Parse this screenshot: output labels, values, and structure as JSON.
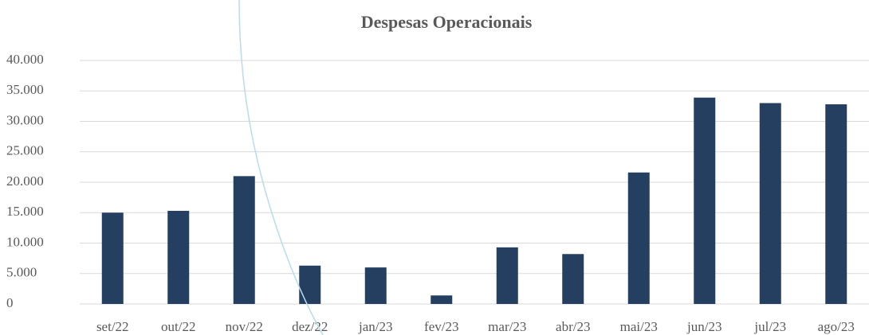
{
  "chart_data": {
    "type": "bar",
    "title": "Despesas Operacionais",
    "categories": [
      "set/22",
      "out/22",
      "nov/22",
      "dez/22",
      "jan/23",
      "fev/23",
      "mar/23",
      "abr/23",
      "mai/23",
      "jun/23",
      "jul/23",
      "ago/23"
    ],
    "values": [
      15000,
      15300,
      21000,
      6300,
      6000,
      1400,
      9300,
      8200,
      21600,
      33900,
      33000,
      32800
    ],
    "color": "#243f60",
    "ylim": [
      0,
      40000
    ],
    "yticks": [
      0,
      {
        "value": 5000,
        "label": "5.000"
      },
      {
        "value": 10000,
        "label": "10.000"
      },
      {
        "value": 15000,
        "label": "15.000"
      },
      {
        "value": 20000,
        "label": "20.000"
      },
      {
        "value": 25000,
        "label": "25.000"
      },
      {
        "value": 30000,
        "label": "30.000"
      },
      {
        "value": 35000,
        "label": "35.000"
      },
      {
        "value": 40000,
        "label": "40.000"
      }
    ],
    "grid": true
  }
}
